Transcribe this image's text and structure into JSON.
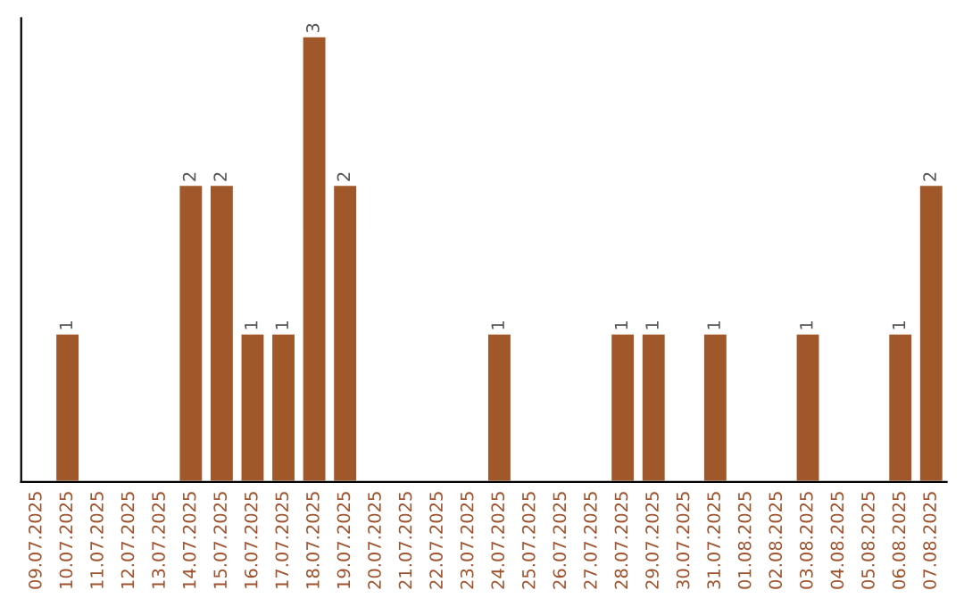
{
  "chart_data": {
    "type": "bar",
    "categories": [
      "09.07.2025",
      "10.07.2025",
      "11.07.2025",
      "12.07.2025",
      "13.07.2025",
      "14.07.2025",
      "15.07.2025",
      "16.07.2025",
      "17.07.2025",
      "18.07.2025",
      "19.07.2025",
      "20.07.2025",
      "21.07.2025",
      "22.07.2025",
      "23.07.2025",
      "24.07.2025",
      "25.07.2025",
      "26.07.2025",
      "27.07.2025",
      "28.07.2025",
      "29.07.2025",
      "30.07.2025",
      "31.07.2025",
      "01.08.2025",
      "02.08.2025",
      "03.08.2025",
      "04.08.2025",
      "05.08.2025",
      "06.08.2025",
      "07.08.2025"
    ],
    "values": [
      0,
      1,
      0,
      0,
      0,
      2,
      2,
      1,
      1,
      3,
      2,
      0,
      0,
      0,
      0,
      1,
      0,
      0,
      0,
      1,
      1,
      0,
      1,
      0,
      0,
      1,
      0,
      0,
      1,
      2
    ],
    "value_labels": [
      null,
      "1",
      null,
      null,
      null,
      "2",
      "2",
      "1",
      "1",
      "3",
      "2",
      null,
      null,
      null,
      null,
      "1",
      null,
      null,
      null,
      "1",
      "1",
      null,
      "1",
      null,
      null,
      "1",
      null,
      null,
      "1",
      "2"
    ],
    "color": "#a0582a",
    "ylim": [
      0,
      3.12
    ],
    "tick_labels": "x",
    "grid": false,
    "legend": false
  }
}
